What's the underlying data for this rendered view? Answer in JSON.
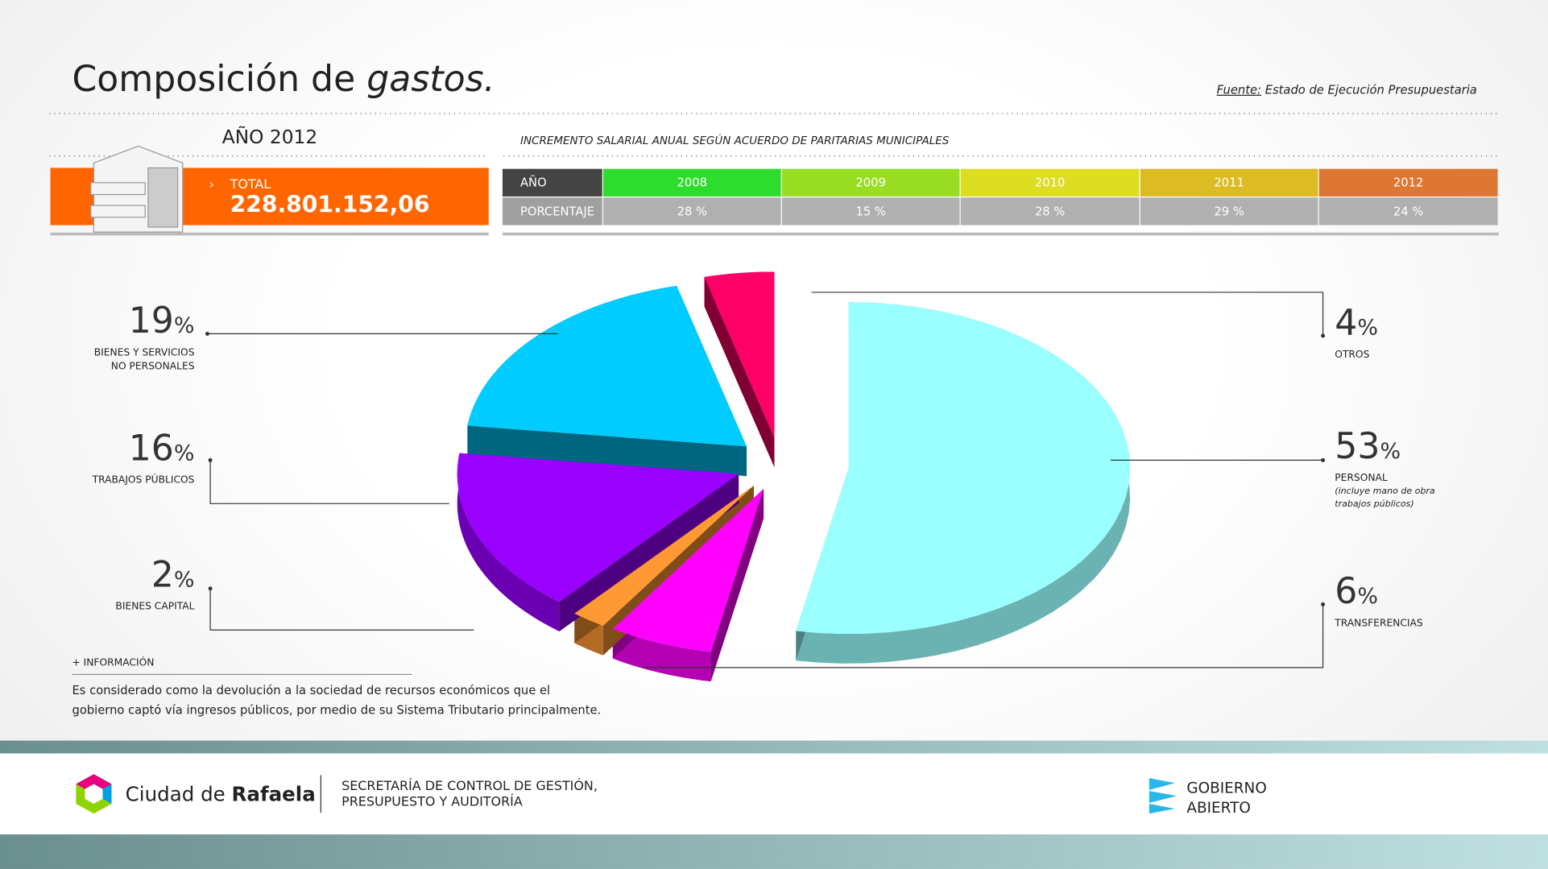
{
  "header": {
    "title": "Composición de",
    "title_italic": "gastos.",
    "source_label": "Fuente:",
    "source": "Estado de Ejecución Presupuestaria"
  },
  "summary": {
    "year": "AÑO 2012",
    "total_label": "TOTAL",
    "total": "228.801.152,06"
  },
  "table": {
    "caption": "INCREMENTO SALARIAL ANUAL SEGÚN ACUERDO DE PARITARIAS MUNICIPALES",
    "rows": [
      [
        "AÑO",
        "2008",
        "2009",
        "2010",
        "2011",
        "2012"
      ],
      [
        "PORCENTAJE",
        "28 %",
        "15 %",
        "28 %",
        "29 %",
        "24 %"
      ]
    ]
  },
  "chart_data": {
    "type": "pie",
    "unit": "%",
    "categories": [
      "PERSONAL",
      "TRANSFERENCIAS",
      "BIENES CAPITAL",
      "TRABAJOS PÚBLICOS",
      "BIENES Y SERVICIOS\nNO PERSONALES",
      "OTROS"
    ],
    "values": [
      53,
      6,
      2,
      16,
      19,
      4
    ],
    "colors": [
      "#99ffff",
      "#ff00ff",
      "#ff9933",
      "#9900ff",
      "#00ccff",
      "#ff0066"
    ],
    "notes": {
      "0": "(incluye mano de obra\ntrabajos públicos)"
    }
  },
  "info": {
    "title": "+ INFORMACIÓN",
    "text": "Es considerado como la devolución a la sociedad de recursos económicos que el\ngobierno captó vía ingresos públicos, por medio de su Sistema Tributario principalmente."
  },
  "footer": {
    "brand": "Ciudad de",
    "brand_bold": "Rafaela",
    "department": "SECRETARÍA DE CONTROL DE GESTIÓN,\nPRESUPUESTO Y AUDITORÍA",
    "open_gov": "GOBIERNO\nABIERTO"
  }
}
